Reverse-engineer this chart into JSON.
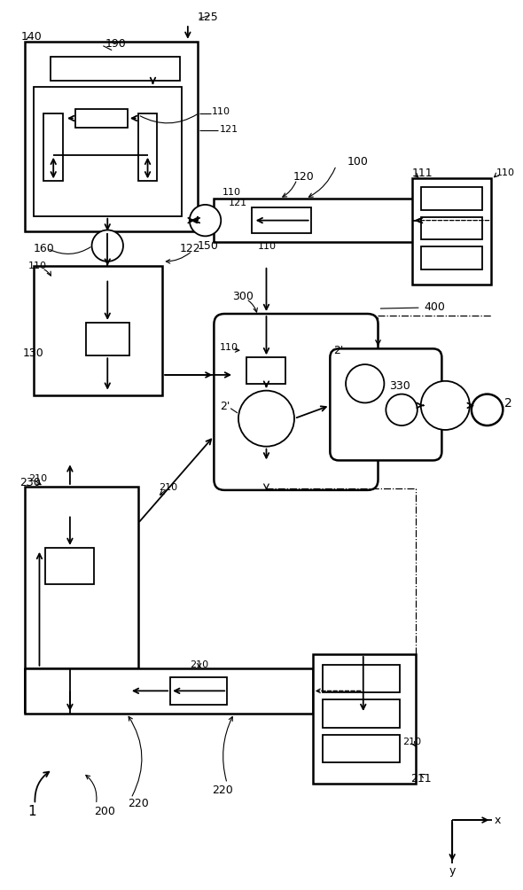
{
  "bg": "#ffffff",
  "lc": "#000000",
  "lw": 1.3,
  "lw2": 1.8,
  "lw_thin": 0.9
}
